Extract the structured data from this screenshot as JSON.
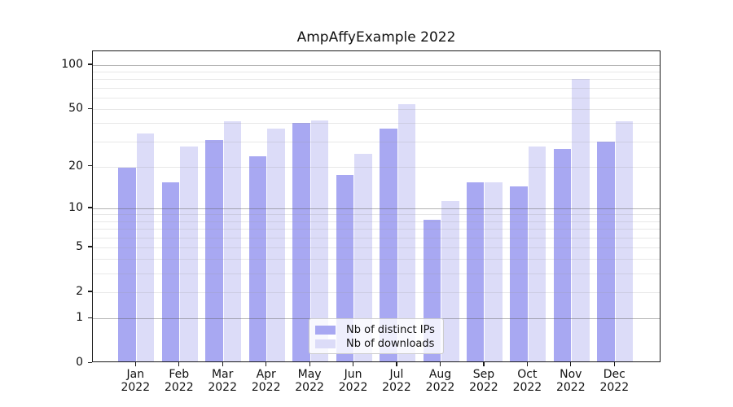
{
  "title": "AmpAffyExample 2022",
  "legend": {
    "items": [
      {
        "label": "Nb of distinct IPs",
        "color": "#a8a8f2"
      },
      {
        "label": "Nb of downloads",
        "color": "#dcdcf8"
      }
    ]
  },
  "chart_data": {
    "type": "bar",
    "title": "AmpAffyExample 2022",
    "scale": "log1p",
    "categories": [
      "Jan",
      "Feb",
      "Mar",
      "Apr",
      "May",
      "Jun",
      "Jul",
      "Aug",
      "Sep",
      "Oct",
      "Nov",
      "Dec"
    ],
    "year_label": "2022",
    "series": [
      {
        "name": "Nb of distinct IPs",
        "color": "#a8a8f2",
        "values": [
          19,
          15,
          30,
          23,
          39,
          17,
          36,
          8,
          15,
          14,
          26,
          29
        ]
      },
      {
        "name": "Nb of downloads",
        "color": "#dcdcf8",
        "values": [
          33,
          27,
          40,
          36,
          41,
          24,
          53,
          11,
          15,
          27,
          78,
          40
        ]
      }
    ],
    "yticks": [
      0,
      1,
      2,
      5,
      10,
      20,
      50,
      100
    ],
    "minor_ticks": [
      3,
      4,
      6,
      7,
      8,
      9,
      30,
      40,
      60,
      70,
      80,
      90
    ],
    "major_gridline_values": [
      1,
      10,
      100
    ],
    "ylim": [
      0,
      124
    ],
    "xlabel": "",
    "ylabel": "",
    "grid": true,
    "legend_position": "lower center"
  }
}
